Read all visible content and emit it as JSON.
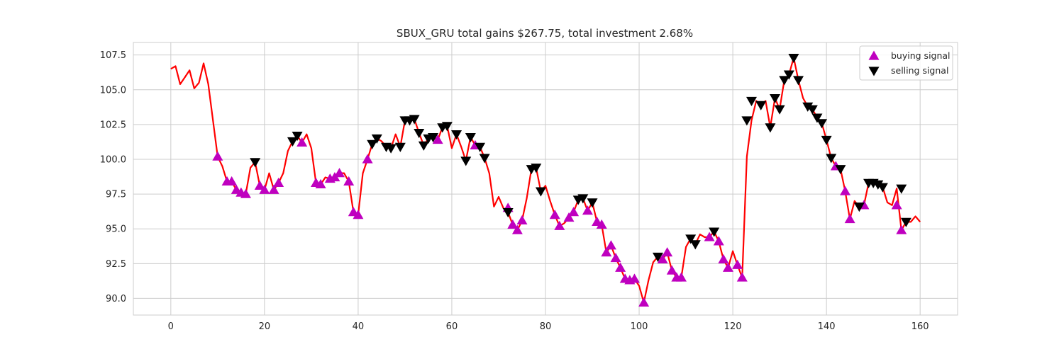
{
  "chart_data": {
    "type": "line",
    "title": "SBUX_GRU total gains $267.75, total investment 2.68%",
    "xlabel": "",
    "ylabel": "",
    "xlim": [
      -8,
      168
    ],
    "ylim": [
      88.8,
      108.4
    ],
    "x_ticks": [
      0,
      20,
      40,
      60,
      80,
      100,
      120,
      140,
      160
    ],
    "y_ticks": [
      90.0,
      92.5,
      95.0,
      97.5,
      100.0,
      102.5,
      105.0,
      107.5
    ],
    "grid": true,
    "legend_position": "top-right",
    "colors": {
      "line": "#ff0000",
      "buy": "#bf00bf",
      "sell": "#000000",
      "grid": "#cccccc",
      "axes": "#cccccc"
    },
    "legend": [
      {
        "label": "buying signal",
        "marker": "triangle-up",
        "color": "#bf00bf"
      },
      {
        "label": "selling signal",
        "marker": "triangle-down",
        "color": "#000000"
      }
    ],
    "series": [
      {
        "name": "",
        "x": [
          0,
          1,
          2,
          3,
          4,
          5,
          6,
          7,
          8,
          9,
          10,
          11,
          12,
          13,
          14,
          15,
          16,
          17,
          18,
          19,
          20,
          21,
          22,
          23,
          24,
          25,
          26,
          27,
          28,
          29,
          30,
          31,
          32,
          33,
          34,
          35,
          36,
          37,
          38,
          39,
          40,
          41,
          42,
          43,
          44,
          45,
          46,
          47,
          48,
          49,
          50,
          51,
          52,
          53,
          54,
          55,
          56,
          57,
          58,
          59,
          60,
          61,
          62,
          63,
          64,
          65,
          66,
          67,
          68,
          69,
          70,
          71,
          72,
          73,
          74,
          75,
          76,
          77,
          78,
          79,
          80,
          81,
          82,
          83,
          84,
          85,
          86,
          87,
          88,
          89,
          90,
          91,
          92,
          93,
          94,
          95,
          96,
          97,
          98,
          99,
          100,
          101,
          102,
          103,
          104,
          105,
          106,
          107,
          108,
          109,
          110,
          111,
          112,
          113,
          114,
          115,
          116,
          117,
          118,
          119,
          120,
          121,
          122,
          123,
          124,
          125,
          126,
          127,
          128,
          129,
          130,
          131,
          132,
          133,
          134,
          135,
          136,
          137,
          138,
          139,
          140,
          141,
          142,
          143,
          144,
          145,
          146,
          147,
          148,
          149,
          150,
          151,
          152,
          153,
          154,
          155,
          156,
          157,
          158,
          159,
          160
        ],
        "y": [
          106.5,
          106.7,
          105.4,
          105.9,
          106.4,
          105.1,
          105.5,
          106.9,
          105.4,
          102.8,
          100.2,
          99.5,
          98.4,
          98.4,
          97.8,
          97.6,
          97.5,
          99.4,
          99.8,
          98.1,
          97.8,
          99.0,
          97.8,
          98.3,
          99.0,
          100.6,
          101.3,
          101.7,
          101.2,
          101.8,
          100.8,
          98.3,
          98.2,
          98.7,
          98.6,
          98.7,
          99.0,
          99.0,
          98.4,
          96.2,
          96.0,
          99.0,
          100.0,
          101.1,
          101.5,
          101.3,
          100.9,
          100.8,
          101.8,
          100.9,
          102.8,
          102.8,
          102.9,
          101.9,
          101.0,
          101.5,
          101.6,
          101.4,
          102.3,
          102.4,
          100.8,
          101.8,
          100.9,
          99.9,
          101.6,
          101.0,
          100.9,
          100.1,
          99.0,
          96.6,
          97.3,
          96.5,
          96.2,
          95.3,
          94.9,
          95.6,
          97.2,
          99.3,
          99.4,
          97.7,
          98.1,
          97.0,
          96.0,
          95.2,
          95.4,
          95.8,
          96.2,
          97.1,
          97.2,
          96.3,
          96.9,
          95.5,
          95.3,
          93.3,
          93.8,
          92.9,
          92.2,
          91.4,
          91.3,
          91.4,
          90.9,
          89.7,
          91.3,
          92.6,
          93.0,
          92.8,
          93.3,
          92.0,
          91.5,
          91.5,
          93.7,
          94.3,
          93.9,
          94.6,
          94.4,
          94.4,
          94.8,
          94.1,
          92.8,
          92.2,
          93.4,
          92.4,
          91.5,
          100.2,
          102.8,
          104.2,
          103.9,
          104.2,
          102.3,
          104.4,
          103.6,
          105.7,
          106.1,
          107.3,
          105.7,
          104.4,
          103.8,
          103.6,
          103.0,
          102.6,
          101.4,
          100.1,
          99.5,
          99.3,
          97.7,
          95.7,
          97.0,
          96.6,
          96.7,
          98.3,
          98.3,
          98.2,
          98.0,
          96.9,
          96.7,
          97.9,
          94.9,
          95.5,
          95.5,
          95.9,
          95.5
        ]
      },
      {
        "name": "buying signal",
        "x": [
          10,
          12,
          13,
          14,
          15,
          16,
          19,
          20,
          22,
          23,
          28,
          31,
          32,
          34,
          35,
          36,
          38,
          39,
          40,
          42,
          57,
          65,
          72,
          73,
          74,
          75,
          82,
          83,
          85,
          86,
          89,
          91,
          92,
          93,
          94,
          95,
          96,
          97,
          98,
          99,
          101,
          105,
          106,
          107,
          108,
          109,
          115,
          117,
          118,
          119,
          121,
          122,
          142,
          144,
          145,
          148,
          155,
          156
        ],
        "y": [
          100.2,
          98.4,
          98.4,
          97.8,
          97.6,
          97.5,
          98.1,
          97.8,
          97.8,
          98.3,
          101.2,
          98.3,
          98.2,
          98.6,
          98.7,
          99.0,
          98.4,
          96.2,
          96.0,
          100.0,
          101.4,
          101.0,
          96.5,
          95.3,
          94.9,
          95.6,
          96.0,
          95.2,
          95.8,
          96.2,
          96.3,
          95.5,
          95.3,
          93.3,
          93.8,
          92.9,
          92.2,
          91.4,
          91.3,
          91.4,
          89.7,
          92.8,
          93.3,
          92.0,
          91.5,
          91.5,
          94.4,
          94.1,
          92.8,
          92.2,
          92.4,
          91.5,
          99.5,
          97.7,
          95.7,
          96.7,
          96.7,
          94.9
        ]
      },
      {
        "name": "selling signal",
        "x": [
          18,
          26,
          27,
          43,
          44,
          46,
          47,
          49,
          50,
          51,
          52,
          53,
          54,
          55,
          56,
          58,
          59,
          61,
          63,
          64,
          66,
          67,
          72,
          77,
          78,
          79,
          87,
          88,
          90,
          104,
          111,
          112,
          116,
          123,
          124,
          126,
          128,
          129,
          130,
          131,
          132,
          133,
          134,
          136,
          137,
          138,
          139,
          140,
          141,
          143,
          147,
          149,
          150,
          151,
          152,
          156,
          157
        ],
        "y": [
          99.8,
          101.3,
          101.7,
          101.1,
          101.5,
          100.9,
          100.8,
          100.9,
          102.8,
          102.8,
          102.9,
          101.9,
          101.0,
          101.5,
          101.6,
          102.3,
          102.4,
          101.8,
          99.9,
          101.6,
          100.9,
          100.1,
          96.2,
          99.3,
          99.4,
          97.7,
          97.1,
          97.2,
          96.9,
          93.0,
          94.3,
          93.9,
          94.8,
          102.8,
          104.2,
          103.9,
          102.3,
          104.4,
          103.6,
          105.7,
          106.1,
          107.3,
          105.7,
          103.8,
          103.6,
          103.0,
          102.6,
          101.4,
          100.1,
          99.3,
          96.6,
          98.3,
          98.3,
          98.2,
          98.0,
          97.9,
          95.5
        ]
      }
    ]
  }
}
